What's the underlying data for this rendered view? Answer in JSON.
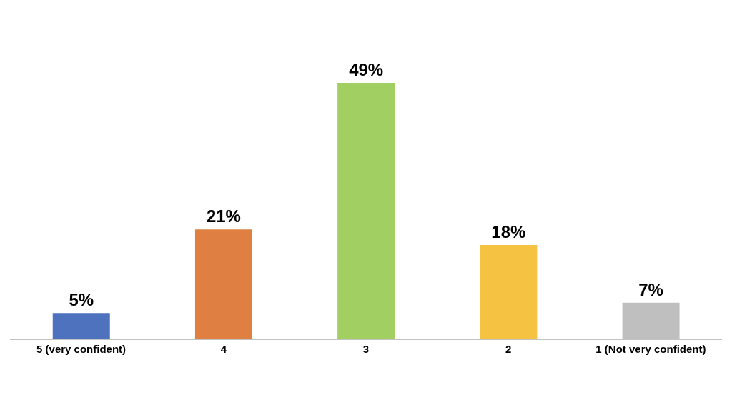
{
  "chart_data": {
    "type": "bar",
    "categories": [
      "5 (very confident)",
      "4",
      "3",
      "2",
      "1 (Not very confident)"
    ],
    "values": [
      5,
      21,
      49,
      18,
      7
    ],
    "colors": [
      "#4f72be",
      "#e07f42",
      "#a1cf62",
      "#f5c242",
      "#bfbfbf"
    ],
    "value_labels": [
      "5%",
      "21%",
      "49%",
      "18%",
      "7%"
    ],
    "grid": false,
    "legend": false
  }
}
